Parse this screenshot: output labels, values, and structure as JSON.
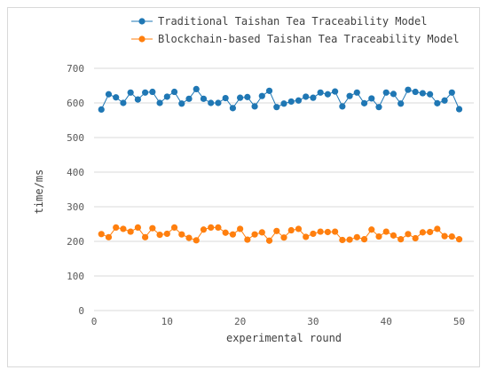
{
  "chart_data": {
    "type": "line",
    "xlabel": "experimental round",
    "ylabel": "time/ms",
    "xlim": [
      0,
      52
    ],
    "ylim": [
      0,
      700
    ],
    "xticks": [
      0,
      10,
      20,
      30,
      40,
      50
    ],
    "yticks": [
      0,
      100,
      200,
      300,
      400,
      500,
      600,
      700
    ],
    "grid": "horizontal",
    "legend_position": "top",
    "series": [
      {
        "name": "Traditional Taishan Tea Traceability Model",
        "color": "#1f77b4",
        "marker": "circle",
        "x": [
          1,
          2,
          3,
          4,
          5,
          6,
          7,
          8,
          9,
          10,
          11,
          12,
          13,
          14,
          15,
          16,
          17,
          18,
          19,
          20,
          21,
          22,
          23,
          24,
          25,
          26,
          27,
          28,
          29,
          30,
          31,
          32,
          33,
          34,
          35,
          36,
          37,
          38,
          39,
          40,
          41,
          42,
          43,
          44,
          45,
          46,
          47,
          48,
          49,
          50
        ],
        "values": [
          581,
          625,
          616,
          600,
          630,
          610,
          630,
          632,
          600,
          618,
          632,
          598,
          612,
          640,
          612,
          600,
          600,
          614,
          585,
          615,
          617,
          590,
          620,
          635,
          588,
          598,
          604,
          607,
          618,
          615,
          630,
          625,
          633,
          590,
          620,
          630,
          599,
          613,
          588,
          630,
          626,
          598,
          638,
          632,
          628,
          625,
          599,
          607,
          630,
          582
        ]
      },
      {
        "name": "Blockchain-based Taishan Tea Traceability Model",
        "color": "#ff7f0e",
        "marker": "circle",
        "x": [
          1,
          2,
          3,
          4,
          5,
          6,
          7,
          8,
          9,
          10,
          11,
          12,
          13,
          14,
          15,
          16,
          17,
          18,
          19,
          20,
          21,
          22,
          23,
          24,
          25,
          26,
          27,
          28,
          29,
          30,
          31,
          32,
          33,
          34,
          35,
          36,
          37,
          38,
          39,
          40,
          41,
          42,
          43,
          44,
          45,
          46,
          47,
          48,
          49,
          50
        ],
        "values": [
          221,
          212,
          240,
          236,
          228,
          240,
          212,
          238,
          219,
          222,
          240,
          220,
          210,
          203,
          234,
          240,
          240,
          225,
          220,
          236,
          205,
          220,
          226,
          202,
          230,
          211,
          232,
          236,
          213,
          222,
          228,
          227,
          228,
          204,
          205,
          212,
          206,
          234,
          214,
          228,
          217,
          206,
          221,
          209,
          226,
          227,
          236,
          215,
          214,
          206
        ]
      }
    ]
  }
}
